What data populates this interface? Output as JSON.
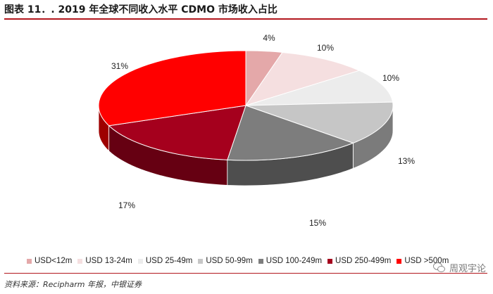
{
  "header": {
    "title": "图表 11．. 2019 年全球不同收入水平 CDMO 市场收入占比"
  },
  "chart_data": {
    "type": "pie",
    "title": "2019 年全球不同收入水平 CDMO 市场收入占比",
    "categories": [
      "USD<12m",
      "USD 13-24m",
      "USD 25-49m",
      "USD 50-99m",
      "USD 100-249m",
      "USD 250-499m",
      "USD >500m"
    ],
    "values": [
      4,
      10,
      10,
      13,
      15,
      17,
      31
    ],
    "labels": [
      "4%",
      "10%",
      "10%",
      "13%",
      "15%",
      "17%",
      "31%"
    ],
    "colors": [
      "#e4a8a9",
      "#f5dfe0",
      "#ececec",
      "#c6c6c6",
      "#7d7d7d",
      "#a5001d",
      "#ff0000"
    ],
    "legend_position": "bottom"
  },
  "footer": {
    "source": "资料来源：Recipharm 年报，中银证券",
    "watermark": "周观宇论"
  }
}
